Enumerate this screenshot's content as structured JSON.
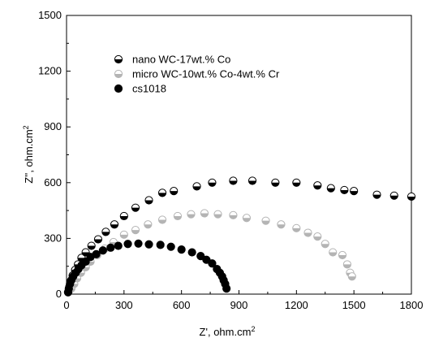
{
  "chart_data": {
    "type": "scatter",
    "xlabel": "Z', ohm.cm",
    "xlabel_sup": "2",
    "ylabel": "Z'', ohm.cm",
    "ylabel_sup": "2",
    "xlim": [
      0,
      1800
    ],
    "ylim": [
      0,
      1500
    ],
    "xticks": [
      0,
      300,
      600,
      900,
      1200,
      1500,
      1800
    ],
    "yticks": [
      0,
      300,
      600,
      900,
      1200,
      1500
    ],
    "xtick_labels": [
      "0",
      "300",
      "600",
      "900",
      "1200",
      "1500",
      "1800"
    ],
    "ytick_labels": [
      "0",
      "300",
      "600",
      "900",
      "1200",
      "1500"
    ],
    "grid": false,
    "legend_position": "upper-left",
    "series": [
      {
        "name": "nano WC-17wt.% Co",
        "marker": "half-filled-bottom",
        "color": "#000000",
        "x": [
          10,
          15,
          22,
          32,
          45,
          60,
          78,
          100,
          130,
          165,
          205,
          250,
          300,
          360,
          430,
          500,
          560,
          680,
          760,
          870,
          970,
          1090,
          1200,
          1310,
          1380,
          1450,
          1500,
          1620,
          1710,
          1800
        ],
        "y": [
          15,
          40,
          70,
          100,
          130,
          160,
          195,
          225,
          260,
          295,
          335,
          375,
          420,
          465,
          505,
          545,
          555,
          580,
          600,
          610,
          610,
          600,
          600,
          585,
          570,
          560,
          555,
          535,
          530,
          525
        ]
      },
      {
        "name": "micro WC-10wt.% Co-4wt.% Cr",
        "marker": "half-filled-bottom",
        "color": "#b4b4b4",
        "x": [
          25,
          40,
          55,
          75,
          100,
          125,
          160,
          200,
          245,
          300,
          360,
          425,
          500,
          580,
          650,
          720,
          790,
          870,
          940,
          1040,
          1120,
          1200,
          1260,
          1310,
          1350,
          1390,
          1440,
          1465,
          1480,
          1490
        ],
        "y": [
          30,
          55,
          85,
          115,
          145,
          175,
          210,
          245,
          280,
          320,
          345,
          375,
          400,
          420,
          430,
          435,
          430,
          425,
          410,
          395,
          375,
          355,
          330,
          310,
          270,
          225,
          210,
          160,
          115,
          95
        ]
      },
      {
        "name": "cs1018",
        "marker": "filled",
        "color": "#000000",
        "x": [
          8,
          12,
          18,
          25,
          35,
          48,
          62,
          78,
          100,
          125,
          155,
          190,
          230,
          270,
          320,
          375,
          430,
          490,
          545,
          600,
          655,
          700,
          730,
          760,
          785,
          800,
          812,
          820,
          828,
          835
        ],
        "y": [
          10,
          30,
          55,
          75,
          95,
          115,
          135,
          155,
          175,
          200,
          215,
          235,
          250,
          260,
          270,
          272,
          268,
          265,
          255,
          240,
          225,
          205,
          185,
          165,
          135,
          115,
          95,
          75,
          55,
          30
        ]
      }
    ]
  }
}
